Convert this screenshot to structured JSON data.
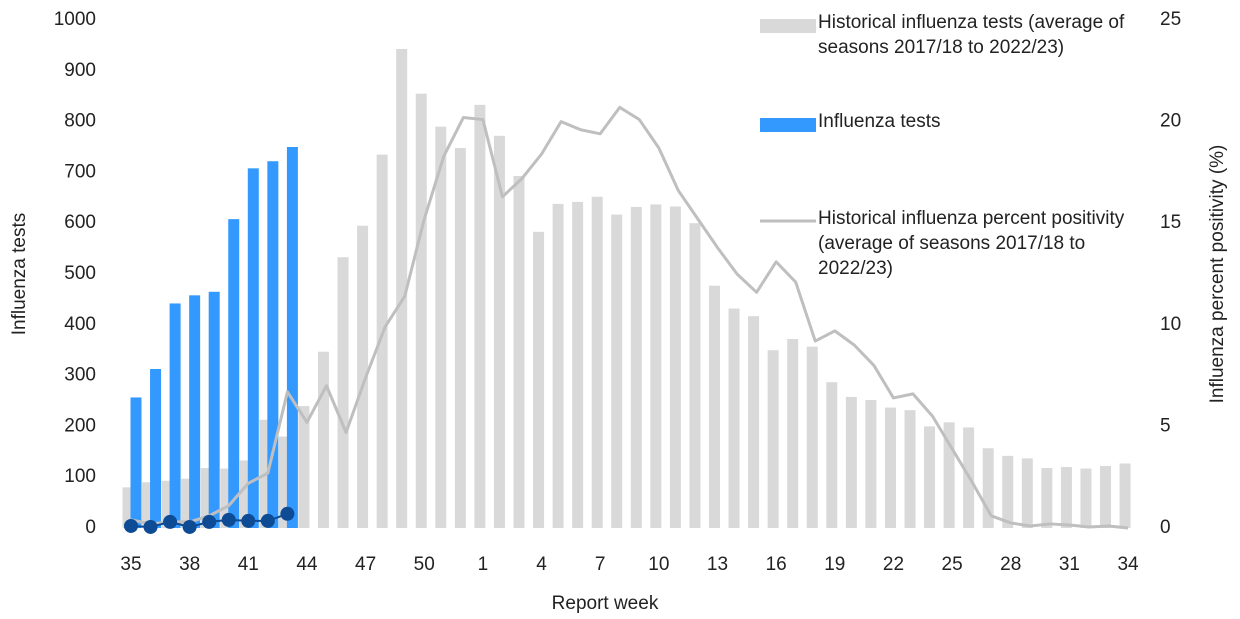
{
  "chart_data": {
    "type": "combo",
    "x_label": "Report week",
    "y_label": "Influenza tests",
    "y2_label": "Influenza percent positivity (%)",
    "categories": [
      35,
      null,
      null,
      38,
      null,
      null,
      41,
      null,
      null,
      44,
      null,
      null,
      47,
      null,
      null,
      50,
      null,
      null,
      1,
      null,
      null,
      4,
      null,
      null,
      7,
      null,
      null,
      10,
      null,
      null,
      13,
      null,
      null,
      16,
      null,
      null,
      19,
      null,
      null,
      22,
      null,
      null,
      25,
      null,
      null,
      28,
      null,
      null,
      31,
      null,
      null,
      34
    ],
    "ylim": [
      0,
      1000
    ],
    "yticks": [
      0,
      100,
      200,
      300,
      400,
      500,
      600,
      700,
      800,
      900,
      1000
    ],
    "y2lim": [
      0,
      25
    ],
    "y2ticks": [
      0,
      5,
      10,
      15,
      20,
      25
    ],
    "legend": "upper right",
    "series": [
      {
        "name": "Historical influenza tests (average of seasons 2017/18 to 2022/23)",
        "type": "bar",
        "color": "#d9d9d9",
        "values": [
          80,
          90,
          93,
          97,
          118,
          117,
          133,
          213,
          180,
          240,
          347,
          533,
          595,
          735,
          943,
          855,
          790,
          748,
          833,
          772,
          693,
          583,
          638,
          642,
          652,
          617,
          632,
          637,
          633,
          600,
          477,
          432,
          417,
          350,
          372,
          357,
          287,
          258,
          252,
          237,
          232,
          200,
          208,
          198,
          157,
          142,
          137,
          118,
          120,
          117,
          122,
          127
        ]
      },
      {
        "name": "Influenza tests",
        "type": "bar",
        "color": "#3399ff",
        "values": [
          257,
          313,
          442,
          458,
          465,
          608,
          708,
          722,
          750,
          null,
          null,
          null,
          null,
          null,
          null,
          null,
          null,
          null,
          null,
          null,
          null,
          null,
          null,
          null,
          null,
          null,
          null,
          null,
          null,
          null,
          null,
          null,
          null,
          null,
          null,
          null,
          null,
          null,
          null,
          null,
          null,
          null,
          null,
          null,
          null,
          null,
          null,
          null,
          null,
          null,
          null,
          null
        ]
      },
      {
        "name": "Historical influenza percent positivity (average of seasons 2017/18 to 2022/23)",
        "type": "line",
        "axis": "y2",
        "color": "#bfbfbf",
        "values": [
          0.4,
          0.2,
          0.3,
          0.3,
          0.6,
          1.1,
          2.2,
          2.7,
          6.7,
          5.2,
          7.0,
          4.7,
          7.4,
          9.9,
          11.4,
          15.2,
          18.3,
          20.2,
          20.1,
          16.3,
          17.2,
          18.4,
          20.0,
          19.6,
          19.4,
          20.7,
          20.1,
          18.7,
          16.6,
          15.2,
          13.8,
          12.5,
          11.6,
          13.1,
          12.1,
          9.2,
          9.7,
          9.0,
          8.0,
          6.4,
          6.6,
          5.5,
          3.9,
          2.3,
          0.6,
          0.25,
          0.1,
          0.2,
          0.15,
          0.05,
          0.1,
          0
        ]
      },
      {
        "type": "scatter",
        "axis": "y2",
        "color": "#0d4b94",
        "values": [
          0.1,
          0.05,
          0.3,
          0.05,
          0.3,
          0.4,
          0.35,
          0.35,
          0.7,
          null,
          null,
          null,
          null,
          null,
          null,
          null,
          null,
          null,
          null,
          null,
          null,
          null,
          null,
          null,
          null,
          null,
          null,
          null,
          null,
          null,
          null,
          null,
          null,
          null,
          null,
          null,
          null,
          null,
          null,
          null,
          null,
          null,
          null,
          null,
          null,
          null,
          null,
          null,
          null,
          null,
          null,
          null
        ]
      }
    ]
  }
}
